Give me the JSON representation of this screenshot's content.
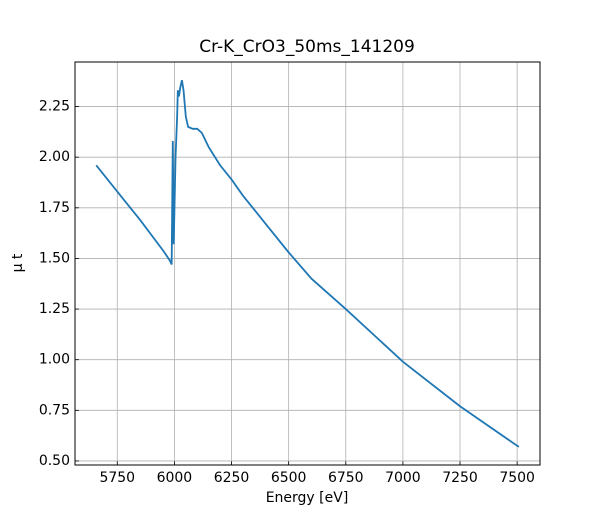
{
  "chart_data": {
    "type": "line",
    "title": "Cr-K_CrO3_50ms_141209",
    "xlabel": "Energy [eV]",
    "ylabel": "μ t",
    "grid": true,
    "xlim": [
      5565,
      7600
    ],
    "ylim": [
      0.48,
      2.47
    ],
    "xticks": [
      5750,
      6000,
      6250,
      6500,
      6750,
      7000,
      7250,
      7500
    ],
    "yticks": [
      {
        "value": 0.5,
        "label": "0.50"
      },
      {
        "value": 0.75,
        "label": "0.75"
      },
      {
        "value": 1.0,
        "label": "1.00"
      },
      {
        "value": 1.25,
        "label": "1.25"
      },
      {
        "value": 1.5,
        "label": "1.50"
      },
      {
        "value": 1.75,
        "label": "1.75"
      },
      {
        "value": 2.0,
        "label": "2.00"
      },
      {
        "value": 2.25,
        "label": "2.25"
      }
    ],
    "series": [
      {
        "color": "#1f77b4",
        "x": [
          5658,
          5750,
          5850,
          5950,
          5980,
          5988,
          5993,
          5997,
          6005,
          6012,
          6015,
          6020,
          6025,
          6033,
          6040,
          6050,
          6060,
          6080,
          6100,
          6120,
          6150,
          6200,
          6250,
          6300,
          6400,
          6500,
          6600,
          6750,
          7000,
          7250,
          7500,
          7508
        ],
        "values": [
          1.96,
          1.83,
          1.69,
          1.54,
          1.49,
          1.47,
          2.08,
          1.57,
          2.0,
          2.2,
          2.33,
          2.3,
          2.34,
          2.38,
          2.33,
          2.2,
          2.15,
          2.14,
          2.14,
          2.12,
          2.05,
          1.96,
          1.89,
          1.81,
          1.67,
          1.53,
          1.4,
          1.25,
          0.99,
          0.77,
          0.575,
          0.57
        ]
      }
    ]
  }
}
